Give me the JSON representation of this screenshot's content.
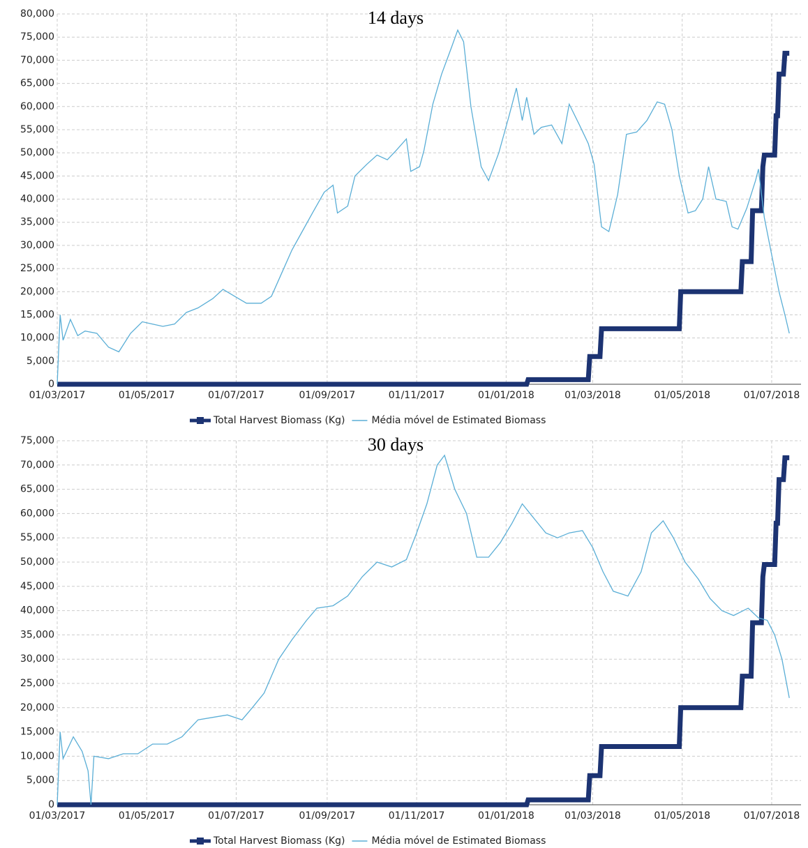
{
  "chart_data": [
    {
      "type": "line",
      "title": "14 days",
      "xlim": [
        "2017-03-01",
        "2018-07-21"
      ],
      "xticks": [
        {
          "value": "2017-03-01",
          "label": "01/03/2017"
        },
        {
          "value": "2017-05-01",
          "label": "01/05/2017"
        },
        {
          "value": "2017-07-01",
          "label": "01/07/2017"
        },
        {
          "value": "2017-09-01",
          "label": "01/09/2017"
        },
        {
          "value": "2017-11-01",
          "label": "01/11/2017"
        },
        {
          "value": "2018-01-01",
          "label": "01/01/2018"
        },
        {
          "value": "2018-03-01",
          "label": "01/03/2018"
        },
        {
          "value": "2018-05-01",
          "label": "01/05/2018"
        },
        {
          "value": "2018-07-01",
          "label": "01/07/2018"
        }
      ],
      "ylim": [
        0,
        80000
      ],
      "yticks": [
        0,
        {
          "value": 5000,
          "label": "5,000"
        },
        {
          "value": 10000,
          "label": "10,000"
        },
        {
          "value": 15000,
          "label": "15,000"
        },
        {
          "value": 20000,
          "label": "20,000"
        },
        {
          "value": 25000,
          "label": "25,000"
        },
        {
          "value": 30000,
          "label": "30,000"
        },
        {
          "value": 35000,
          "label": "35,000"
        },
        {
          "value": 40000,
          "label": "40,000"
        },
        {
          "value": 45000,
          "label": "45,000"
        },
        {
          "value": 50000,
          "label": "50,000"
        },
        {
          "value": 55000,
          "label": "55,000"
        },
        {
          "value": 60000,
          "label": "60,000"
        },
        {
          "value": 65000,
          "label": "65,000"
        },
        {
          "value": 70000,
          "label": "70,000"
        },
        {
          "value": 75000,
          "label": "75,000"
        },
        {
          "value": 80000,
          "label": "80,000"
        }
      ],
      "grid": true,
      "series": [
        {
          "name": "Total Harvest Biomass (Kg)",
          "color": "#1c3372",
          "x": [
            "2017-03-01",
            "2018-01-15",
            "2018-01-16",
            "2018-02-26",
            "2018-02-27",
            "2018-03-06",
            "2018-03-07",
            "2018-04-29",
            "2018-04-30",
            "2018-06-10",
            "2018-06-11",
            "2018-06-17",
            "2018-06-18",
            "2018-06-24",
            "2018-06-25",
            "2018-06-26",
            "2018-07-03",
            "2018-07-04",
            "2018-07-05",
            "2018-07-06",
            "2018-07-09",
            "2018-07-10",
            "2018-07-13"
          ],
          "values": [
            0,
            0,
            1000,
            1000,
            6000,
            6000,
            12000,
            12000,
            20000,
            20000,
            26500,
            26500,
            37500,
            37500,
            47000,
            49500,
            49500,
            58000,
            58000,
            67000,
            67000,
            71500,
            71500
          ]
        },
        {
          "name": "Média móvel de Estimated Biomass",
          "color": "#5aaed6",
          "x": [
            "2017-03-01",
            "2017-03-03",
            "2017-03-05",
            "2017-03-10",
            "2017-03-15",
            "2017-03-20",
            "2017-03-28",
            "2017-04-05",
            "2017-04-12",
            "2017-04-20",
            "2017-04-28",
            "2017-05-05",
            "2017-05-12",
            "2017-05-20",
            "2017-05-28",
            "2017-06-05",
            "2017-06-15",
            "2017-06-22",
            "2017-06-30",
            "2017-07-08",
            "2017-07-18",
            "2017-07-25",
            "2017-08-01",
            "2017-08-08",
            "2017-08-15",
            "2017-08-22",
            "2017-08-30",
            "2017-09-05",
            "2017-09-08",
            "2017-09-15",
            "2017-09-20",
            "2017-09-28",
            "2017-10-05",
            "2017-10-12",
            "2017-10-18",
            "2017-10-25",
            "2017-10-28",
            "2017-11-03",
            "2017-11-06",
            "2017-11-12",
            "2017-11-18",
            "2017-11-25",
            "2017-11-29",
            "2017-12-03",
            "2017-12-08",
            "2017-12-15",
            "2017-12-20",
            "2017-12-27",
            "2018-01-03",
            "2018-01-08",
            "2018-01-12",
            "2018-01-15",
            "2018-01-20",
            "2018-01-25",
            "2018-02-01",
            "2018-02-08",
            "2018-02-13",
            "2018-02-20",
            "2018-02-26",
            "2018-03-02",
            "2018-03-07",
            "2018-03-12",
            "2018-03-18",
            "2018-03-24",
            "2018-03-31",
            "2018-04-07",
            "2018-04-14",
            "2018-04-19",
            "2018-04-24",
            "2018-04-29",
            "2018-05-05",
            "2018-05-10",
            "2018-05-15",
            "2018-05-19",
            "2018-05-24",
            "2018-05-31",
            "2018-06-04",
            "2018-06-08",
            "2018-06-14",
            "2018-06-20",
            "2018-06-22",
            "2018-06-26",
            "2018-07-01",
            "2018-07-06",
            "2018-07-10",
            "2018-07-13"
          ],
          "values": [
            0,
            15000,
            9500,
            14000,
            10500,
            11500,
            11000,
            8000,
            7000,
            11000,
            13500,
            13000,
            12500,
            13000,
            15500,
            16500,
            18500,
            20500,
            19000,
            17500,
            17500,
            19000,
            24000,
            29000,
            33000,
            37000,
            41500,
            43000,
            37000,
            38500,
            45000,
            47500,
            49500,
            48500,
            50500,
            53000,
            46000,
            47000,
            50500,
            60500,
            67000,
            73000,
            76500,
            74000,
            60000,
            47000,
            44000,
            50000,
            58000,
            64000,
            57000,
            62000,
            54000,
            55500,
            56000,
            52000,
            60500,
            56000,
            52000,
            47500,
            34000,
            33000,
            41000,
            54000,
            54500,
            57000,
            61000,
            60500,
            55000,
            45000,
            37000,
            37500,
            40000,
            47000,
            40000,
            39500,
            34000,
            33500,
            38000,
            44000,
            46500,
            36000,
            28000,
            20000,
            15000,
            11000
          ]
        }
      ]
    },
    {
      "type": "line",
      "title": "30 days",
      "xlim": [
        "2017-03-01",
        "2018-07-21"
      ],
      "xticks": [
        {
          "value": "2017-03-01",
          "label": "01/03/2017"
        },
        {
          "value": "2017-05-01",
          "label": "01/05/2017"
        },
        {
          "value": "2017-07-01",
          "label": "01/07/2017"
        },
        {
          "value": "2017-09-01",
          "label": "01/09/2017"
        },
        {
          "value": "2017-11-01",
          "label": "01/11/2017"
        },
        {
          "value": "2018-01-01",
          "label": "01/01/2018"
        },
        {
          "value": "2018-03-01",
          "label": "01/03/2018"
        },
        {
          "value": "2018-05-01",
          "label": "01/05/2018"
        },
        {
          "value": "2018-07-01",
          "label": "01/07/2018"
        }
      ],
      "ylim": [
        0,
        75000
      ],
      "yticks": [
        0,
        {
          "value": 5000,
          "label": "5,000"
        },
        {
          "value": 10000,
          "label": "10,000"
        },
        {
          "value": 15000,
          "label": "15,000"
        },
        {
          "value": 20000,
          "label": "20,000"
        },
        {
          "value": 25000,
          "label": "25,000"
        },
        {
          "value": 30000,
          "label": "30,000"
        },
        {
          "value": 35000,
          "label": "35,000"
        },
        {
          "value": 40000,
          "label": "40,000"
        },
        {
          "value": 45000,
          "label": "45,000"
        },
        {
          "value": 50000,
          "label": "50,000"
        },
        {
          "value": 55000,
          "label": "55,000"
        },
        {
          "value": 60000,
          "label": "60,000"
        },
        {
          "value": 65000,
          "label": "65,000"
        },
        {
          "value": 70000,
          "label": "70,000"
        },
        {
          "value": 75000,
          "label": "75,000"
        }
      ],
      "grid": true,
      "series": [
        {
          "name": "Total Harvest Biomass (Kg)",
          "color": "#1c3372",
          "x": [
            "2017-03-01",
            "2018-01-15",
            "2018-01-16",
            "2018-02-26",
            "2018-02-27",
            "2018-03-06",
            "2018-03-07",
            "2018-04-29",
            "2018-04-30",
            "2018-06-10",
            "2018-06-11",
            "2018-06-17",
            "2018-06-18",
            "2018-06-24",
            "2018-06-25",
            "2018-06-26",
            "2018-07-03",
            "2018-07-04",
            "2018-07-05",
            "2018-07-06",
            "2018-07-09",
            "2018-07-10",
            "2018-07-13"
          ],
          "values": [
            0,
            0,
            1000,
            1000,
            6000,
            6000,
            12000,
            12000,
            20000,
            20000,
            26500,
            26500,
            37500,
            37500,
            47000,
            49500,
            49500,
            58000,
            58000,
            67000,
            67000,
            71500,
            71500
          ]
        },
        {
          "name": "Média móvel de Estimated Biomass",
          "color": "#5aaed6",
          "x": [
            "2017-03-01",
            "2017-03-03",
            "2017-03-05",
            "2017-03-12",
            "2017-03-18",
            "2017-03-22",
            "2017-03-24",
            "2017-03-26",
            "2017-04-05",
            "2017-04-15",
            "2017-04-25",
            "2017-05-05",
            "2017-05-15",
            "2017-05-25",
            "2017-06-05",
            "2017-06-15",
            "2017-06-25",
            "2017-07-05",
            "2017-07-12",
            "2017-07-20",
            "2017-07-30",
            "2017-08-08",
            "2017-08-18",
            "2017-08-25",
            "2017-09-05",
            "2017-09-15",
            "2017-09-25",
            "2017-10-05",
            "2017-10-15",
            "2017-10-25",
            "2017-11-01",
            "2017-11-08",
            "2017-11-15",
            "2017-11-20",
            "2017-11-27",
            "2017-12-05",
            "2017-12-12",
            "2017-12-20",
            "2017-12-28",
            "2018-01-05",
            "2018-01-12",
            "2018-01-20",
            "2018-01-28",
            "2018-02-05",
            "2018-02-13",
            "2018-02-22",
            "2018-03-01",
            "2018-03-08",
            "2018-03-15",
            "2018-03-25",
            "2018-04-03",
            "2018-04-10",
            "2018-04-18",
            "2018-04-25",
            "2018-05-03",
            "2018-05-12",
            "2018-05-20",
            "2018-05-28",
            "2018-06-05",
            "2018-06-15",
            "2018-06-22",
            "2018-06-28",
            "2018-07-03",
            "2018-07-08",
            "2018-07-13"
          ],
          "values": [
            0,
            15000,
            9500,
            14000,
            11000,
            7000,
            0,
            10000,
            9500,
            10500,
            10500,
            12500,
            12500,
            14000,
            17500,
            18000,
            18500,
            17500,
            20000,
            23000,
            30000,
            34000,
            38000,
            40500,
            41000,
            43000,
            47000,
            50000,
            49000,
            50500,
            56000,
            62000,
            70000,
            72000,
            65000,
            60000,
            51000,
            51000,
            54000,
            58000,
            62000,
            59000,
            56000,
            55000,
            56000,
            56500,
            53000,
            48000,
            44000,
            43000,
            48000,
            56000,
            58500,
            55000,
            50000,
            46500,
            42500,
            40000,
            39000,
            40500,
            38500,
            38000,
            35000,
            30000,
            22000
          ]
        }
      ]
    }
  ]
}
